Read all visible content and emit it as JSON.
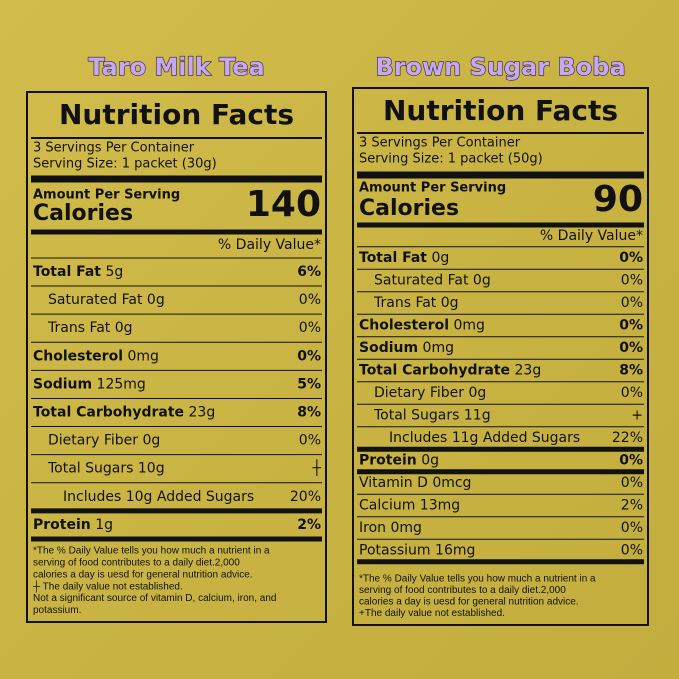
{
  "labels": [
    {
      "product": "Taro Milk Tea",
      "heading": "Nutrition Facts",
      "servings": "3 Servings Per Container",
      "serving_size": "Serving Size: 1 packet (30g)",
      "amount_per_serving": "Amount Per Serving",
      "calories_label": "Calories",
      "calories": 140,
      "dv_header": "% Daily Value*",
      "rows": [
        {
          "name": "Total Fat",
          "amount": "5g",
          "dv": "6%",
          "bold": true,
          "indent": 0
        },
        {
          "name": "Saturated Fat",
          "amount": "0g",
          "dv": "0%",
          "bold": false,
          "indent": 1
        },
        {
          "name": "Trans Fat",
          "amount": "0g",
          "dv": "0%",
          "bold": false,
          "indent": 1
        },
        {
          "name": "Cholesterol",
          "amount": "0mg",
          "dv": "0%",
          "bold": true,
          "indent": 0
        },
        {
          "name": "Sodium",
          "amount": "125mg",
          "dv": "5%",
          "bold": true,
          "indent": 0
        },
        {
          "name": "Total Carbohydrate",
          "amount": "23g",
          "dv": "8%",
          "bold": true,
          "indent": 0
        },
        {
          "name": "Dietary Fiber",
          "amount": "0g",
          "dv": "0%",
          "bold": false,
          "indent": 1
        },
        {
          "name": "Total Sugars",
          "amount": "10g",
          "dv": "┼",
          "bold": false,
          "indent": 1
        },
        {
          "name": "Includes 10g Added Sugars",
          "amount": "",
          "dv": "20%",
          "bold": false,
          "indent": 2
        },
        {
          "name": "Protein",
          "amount": "1g",
          "dv": "2%",
          "bold": true,
          "indent": 0,
          "rule": "thick"
        }
      ],
      "footnote": [
        "*The % Daily Value tells you how much a nutrient in a",
        "serving of food contributes to a daily diet.2,000",
        "calories a day is uesd for general nutrition advice.",
        "┼  The daily value not established.",
        "Not a significant source of vitamin D, calcium, iron, and",
        "potassium."
      ]
    },
    {
      "product": "Brown Sugar Boba",
      "heading": "Nutrition Facts",
      "servings": "3 Servings Per Container",
      "serving_size": "Serving Size: 1 packet (50g)",
      "amount_per_serving": "Amount Per Serving",
      "calories_label": "Calories",
      "calories": 90,
      "dv_header": "% Daily Value*",
      "rows": [
        {
          "name": "Total Fat",
          "amount": "0g",
          "dv": "0%",
          "bold": true,
          "indent": 0
        },
        {
          "name": "Saturated Fat",
          "amount": "0g",
          "dv": "0%",
          "bold": false,
          "indent": 1
        },
        {
          "name": "Trans Fat",
          "amount": "0g",
          "dv": "0%",
          "bold": false,
          "indent": 1
        },
        {
          "name": "Cholesterol",
          "amount": "0mg",
          "dv": "0%",
          "bold": true,
          "indent": 0
        },
        {
          "name": "Sodium",
          "amount": "0mg",
          "dv": "0%",
          "bold": true,
          "indent": 0
        },
        {
          "name": "Total Carbohydrate",
          "amount": "23g",
          "dv": "8%",
          "bold": true,
          "indent": 0
        },
        {
          "name": "Dietary Fiber",
          "amount": "0g",
          "dv": "0%",
          "bold": false,
          "indent": 1
        },
        {
          "name": "Total Sugars",
          "amount": "11g",
          "dv": "+",
          "bold": false,
          "indent": 1
        },
        {
          "name": "Includes 11g Added Sugars",
          "amount": "",
          "dv": "22%",
          "bold": false,
          "indent": 2
        },
        {
          "name": "Protein",
          "amount": "0g",
          "dv": "0%",
          "bold": true,
          "indent": 0,
          "rule": "thick"
        },
        {
          "name": "Vitamin D",
          "amount": "0mcg",
          "dv": "0%",
          "bold": false,
          "indent": 0,
          "rule": "thick"
        },
        {
          "name": "Calcium",
          "amount": "13mg",
          "dv": "2%",
          "bold": false,
          "indent": 0
        },
        {
          "name": "Iron",
          "amount": "0mg",
          "dv": "0%",
          "bold": false,
          "indent": 0
        },
        {
          "name": "Potassium",
          "amount": "16mg",
          "dv": "0%",
          "bold": false,
          "indent": 0
        }
      ],
      "footnote": [
        "*The % Daily Value tells you how much a nutrient in a",
        "serving of food contributes to a daily diet.2,000",
        "calories a day is uesd for general nutrition advice.",
        "+The daily value not established."
      ]
    }
  ]
}
